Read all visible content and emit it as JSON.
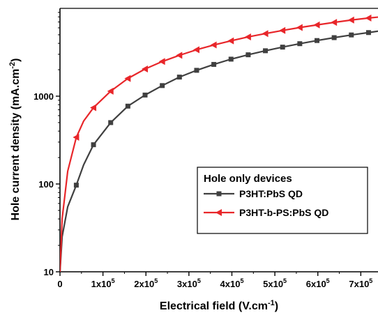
{
  "chart_data": {
    "type": "line",
    "title": "",
    "xlabel": "Electrical field (V.cm",
    "xlabel_sup": "-1",
    "xlabel_end": ")",
    "ylabel": "Hole current density (mA.cm",
    "ylabel_sup": "-2",
    "ylabel_end": ")",
    "x_scale": "linear",
    "y_scale": "log",
    "xlim": [
      0,
      740000
    ],
    "ylim": [
      10,
      10000
    ],
    "x_ticks": [
      {
        "value": 0,
        "base": "0",
        "exp": ""
      },
      {
        "value": 100000,
        "base": "1x10",
        "exp": "5"
      },
      {
        "value": 200000,
        "base": "2x10",
        "exp": "5"
      },
      {
        "value": 300000,
        "base": "3x10",
        "exp": "5"
      },
      {
        "value": 400000,
        "base": "4x10",
        "exp": "5"
      },
      {
        "value": 500000,
        "base": "5x10",
        "exp": "5"
      },
      {
        "value": 600000,
        "base": "6x10",
        "exp": "5"
      },
      {
        "value": 700000,
        "base": "7x10",
        "exp": "5"
      }
    ],
    "y_ticks": [
      {
        "value": 10,
        "label": "10"
      },
      {
        "value": 100,
        "label": "100"
      },
      {
        "value": 1000,
        "label": "1000"
      }
    ],
    "legend": {
      "title": "Hole only devices",
      "placement": "center-right"
    },
    "series": [
      {
        "name": "P3HT:PbS QD",
        "color": "#404040",
        "marker": "square",
        "x": [
          0,
          38000,
          78000,
          118000,
          158000,
          198000,
          238000,
          278000,
          318000,
          358000,
          398000,
          438000,
          478000,
          518000,
          558000,
          598000,
          638000,
          678000,
          718000
        ],
        "y": [
          10,
          97,
          280,
          500,
          770,
          1030,
          1320,
          1650,
          1970,
          2300,
          2640,
          2960,
          3290,
          3620,
          3960,
          4300,
          4640,
          4980,
          5300
        ],
        "curve_y": [
          10,
          25,
          55,
          97,
          165,
          280,
          500,
          770,
          1030,
          1320,
          1650,
          1970,
          2300,
          2640,
          2960,
          3290,
          3620,
          3960,
          4300,
          4640,
          4980,
          5300,
          5500
        ],
        "curve_x": [
          0,
          5000,
          18000,
          38000,
          55000,
          78000,
          118000,
          158000,
          198000,
          238000,
          278000,
          318000,
          358000,
          398000,
          438000,
          478000,
          518000,
          558000,
          598000,
          638000,
          678000,
          718000,
          740000
        ]
      },
      {
        "name": "P3HT-b-PS:PbS QD",
        "color": "#e8262a",
        "marker": "triangle-left",
        "x": [
          0,
          38000,
          78000,
          118000,
          158000,
          198000,
          238000,
          278000,
          318000,
          358000,
          398000,
          438000,
          478000,
          518000,
          558000,
          598000,
          638000,
          678000,
          718000
        ],
        "y": [
          10,
          340,
          740,
          1140,
          1590,
          2040,
          2480,
          2920,
          3380,
          3830,
          4270,
          4730,
          5160,
          5600,
          6050,
          6480,
          6920,
          7360,
          7760
        ],
        "curve_y": [
          10,
          40,
          140,
          340,
          520,
          740,
          1140,
          1590,
          2040,
          2480,
          2920,
          3380,
          3830,
          4270,
          4730,
          5160,
          5600,
          6050,
          6480,
          6920,
          7360,
          7760,
          7950
        ],
        "curve_x": [
          0,
          5000,
          18000,
          38000,
          55000,
          78000,
          118000,
          158000,
          198000,
          238000,
          278000,
          318000,
          358000,
          398000,
          438000,
          478000,
          518000,
          558000,
          598000,
          638000,
          678000,
          718000,
          740000
        ]
      }
    ]
  }
}
